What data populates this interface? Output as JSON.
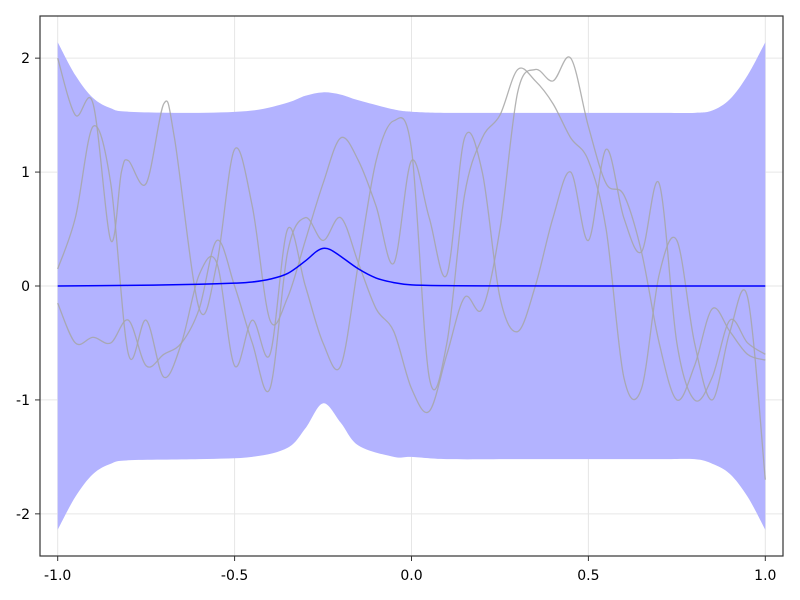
{
  "chart_data": {
    "type": "line",
    "title": "",
    "xlabel": "",
    "ylabel": "",
    "xlim": [
      -1.05,
      1.05
    ],
    "ylim": [
      -2.37,
      2.37
    ],
    "xticks": [
      -1.0,
      -0.5,
      0.0,
      0.5,
      1.0
    ],
    "xtick_labels": [
      "-1.0",
      "-0.5",
      "0.0",
      "0.5",
      "1.0"
    ],
    "yticks": [
      -2,
      -1,
      0,
      1,
      2
    ],
    "ytick_labels": [
      "-2",
      "-1",
      "0",
      "1",
      "2"
    ],
    "grid": true,
    "colors": {
      "band": "#b3b3ff",
      "mean": "#0000ff",
      "samples": "#a6a6a6",
      "grid": "#e6e6e6",
      "frame": "#333333"
    },
    "band": {
      "x": [
        -1.0,
        -0.95,
        -0.9,
        -0.85,
        -0.8,
        -0.6,
        -0.45,
        -0.35,
        -0.3,
        -0.25,
        -0.2,
        -0.15,
        -0.05,
        0.0,
        0.1,
        0.3,
        0.5,
        0.7,
        0.8,
        0.85,
        0.9,
        0.95,
        1.0
      ],
      "upper": [
        2.14,
        1.85,
        1.65,
        1.56,
        1.53,
        1.52,
        1.54,
        1.61,
        1.67,
        1.7,
        1.68,
        1.63,
        1.55,
        1.53,
        1.52,
        1.52,
        1.52,
        1.52,
        1.52,
        1.54,
        1.64,
        1.85,
        2.14
      ],
      "lower": [
        -2.14,
        -1.85,
        -1.65,
        -1.56,
        -1.53,
        -1.52,
        -1.5,
        -1.42,
        -1.25,
        -1.03,
        -1.2,
        -1.4,
        -1.5,
        -1.5,
        -1.52,
        -1.52,
        -1.52,
        -1.52,
        -1.52,
        -1.56,
        -1.65,
        -1.85,
        -2.14
      ]
    },
    "mean": {
      "x": [
        -1.0,
        -0.8,
        -0.6,
        -0.5,
        -0.45,
        -0.4,
        -0.35,
        -0.3,
        -0.27,
        -0.25,
        -0.23,
        -0.2,
        -0.15,
        -0.1,
        -0.05,
        0.0,
        0.1,
        0.2,
        0.5,
        1.0
      ],
      "y": [
        0.0,
        0.005,
        0.015,
        0.025,
        0.035,
        0.06,
        0.11,
        0.22,
        0.3,
        0.33,
        0.32,
        0.26,
        0.15,
        0.07,
        0.03,
        0.01,
        0.003,
        0.001,
        0.0,
        0.0
      ]
    },
    "samples": [
      {
        "x": [
          -1.0,
          -0.95,
          -0.9,
          -0.85,
          -0.82,
          -0.8,
          -0.75,
          -0.7,
          -0.67,
          -0.6,
          -0.55,
          -0.5,
          -0.45,
          -0.4,
          -0.35,
          -0.3,
          -0.25,
          -0.2,
          -0.15,
          -0.1,
          -0.05,
          0.0,
          0.05,
          0.1,
          0.15,
          0.2,
          0.25,
          0.3,
          0.35,
          0.4,
          0.45,
          0.5,
          0.55,
          0.6,
          0.65,
          0.7,
          0.75,
          0.8,
          0.85,
          0.9,
          0.95,
          1.0
        ],
        "y": [
          2.0,
          1.5,
          1.6,
          0.4,
          1.0,
          1.1,
          0.9,
          1.6,
          1.3,
          -0.2,
          0.2,
          1.2,
          0.7,
          -0.3,
          -0.1,
          0.4,
          0.9,
          1.3,
          1.1,
          0.7,
          0.2,
          1.1,
          0.6,
          0.1,
          1.3,
          1.0,
          -0.1,
          -0.4,
          0.0,
          0.6,
          1.0,
          0.4,
          1.2,
          0.6,
          0.3,
          0.9,
          -0.5,
          -1.0,
          -0.8,
          -0.3,
          -0.5,
          -0.6
        ]
      },
      {
        "x": [
          -1.0,
          -0.95,
          -0.9,
          -0.85,
          -0.8,
          -0.75,
          -0.7,
          -0.65,
          -0.6,
          -0.55,
          -0.5,
          -0.45,
          -0.4,
          -0.35,
          -0.3,
          -0.25,
          -0.2,
          -0.15,
          -0.1,
          -0.05,
          0.0,
          0.05,
          0.1,
          0.15,
          0.2,
          0.25,
          0.3,
          0.35,
          0.4,
          0.45,
          0.5,
          0.55,
          0.6,
          0.65,
          0.7,
          0.75,
          0.8,
          0.85,
          0.9,
          0.95,
          1.0
        ],
        "y": [
          0.15,
          0.6,
          1.4,
          0.9,
          -0.6,
          -0.3,
          -0.8,
          -0.5,
          0.1,
          0.2,
          -0.7,
          -0.3,
          -0.6,
          0.5,
          0.0,
          -0.5,
          -0.7,
          0.2,
          1.1,
          1.45,
          1.2,
          -0.8,
          -0.5,
          0.8,
          1.3,
          1.5,
          1.9,
          1.8,
          1.6,
          1.3,
          1.1,
          0.5,
          -0.8,
          -0.9,
          0.1,
          0.4,
          -0.5,
          -1.0,
          -0.4,
          -0.1,
          -1.7
        ]
      },
      {
        "x": [
          -1.0,
          -0.95,
          -0.9,
          -0.85,
          -0.8,
          -0.75,
          -0.7,
          -0.65,
          -0.6,
          -0.55,
          -0.5,
          -0.45,
          -0.4,
          -0.35,
          -0.3,
          -0.25,
          -0.2,
          -0.15,
          -0.1,
          -0.05,
          0.0,
          0.05,
          0.1,
          0.15,
          0.2,
          0.25,
          0.3,
          0.35,
          0.4,
          0.45,
          0.5,
          0.55,
          0.6,
          0.65,
          0.7,
          0.75,
          0.8,
          0.85,
          0.9,
          0.95,
          1.0
        ],
        "y": [
          -0.15,
          -0.5,
          -0.45,
          -0.5,
          -0.3,
          -0.7,
          -0.6,
          -0.5,
          -0.2,
          0.4,
          0.0,
          -0.5,
          -0.9,
          0.3,
          0.6,
          0.4,
          0.6,
          0.2,
          -0.2,
          -0.4,
          -0.9,
          -1.1,
          -0.6,
          -0.1,
          -0.2,
          0.5,
          1.7,
          1.9,
          1.8,
          2.0,
          1.4,
          0.9,
          0.8,
          0.3,
          -0.5,
          -1.0,
          -0.7,
          -0.2,
          -0.4,
          -0.6,
          -0.65
        ]
      }
    ]
  }
}
